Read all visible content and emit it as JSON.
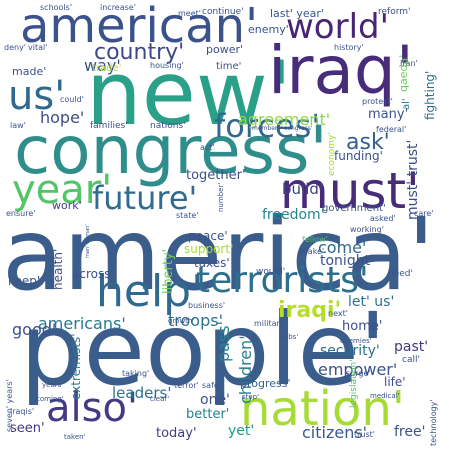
{
  "words": [
    {
      "text": "america'",
      "color": "#3b5d8c"
    },
    {
      "text": "people'",
      "color": "#3b5d8c"
    },
    {
      "text": "congress'",
      "color": "#2f8e8b"
    },
    {
      "text": "new'",
      "color": "#2aa089"
    },
    {
      "text": "iraq'",
      "color": "#472c7a"
    },
    {
      "text": "american'",
      "color": "#3b528b"
    },
    {
      "text": "must'",
      "color": "#472c7a"
    },
    {
      "text": "nation'",
      "color": "#a6db36"
    },
    {
      "text": "help'",
      "color": "#31688e"
    },
    {
      "text": "terrorists'",
      "color": "#2d708e"
    },
    {
      "text": "year'",
      "color": "#52c569"
    },
    {
      "text": "also'",
      "color": "#443983"
    },
    {
      "text": "forces'",
      "color": "#31688e"
    },
    {
      "text": "world'",
      "color": "#482475"
    },
    {
      "text": "future'",
      "color": "#2f6c8e"
    },
    {
      "text": "us'",
      "color": "#31688e"
    },
    {
      "text": "country'",
      "color": "#3e4989"
    },
    {
      "text": "ask'",
      "color": "#355f8d"
    },
    {
      "text": "iraqi'",
      "color": "#b5de2b"
    },
    {
      "text": "americans'",
      "color": "#2a788e"
    },
    {
      "text": "empower'",
      "color": "#3b528b"
    },
    {
      "text": "security'",
      "color": "#2e6e8e"
    },
    {
      "text": "citizens'",
      "color": "#38598c"
    },
    {
      "text": "leaders'",
      "color": "#2c728e"
    },
    {
      "text": "hope'",
      "color": "#3e4c8a"
    },
    {
      "text": "agreement'",
      "color": "#8fd744"
    },
    {
      "text": "way'",
      "color": "#3b528b"
    },
    {
      "text": "troops'",
      "color": "#2d718e"
    },
    {
      "text": "together'",
      "color": "#3b528b"
    },
    {
      "text": "come'",
      "color": "#31668e"
    },
    {
      "text": "freedom'",
      "color": "#25858e"
    },
    {
      "text": "build'",
      "color": "#424086"
    },
    {
      "text": "today'",
      "color": "#433e85"
    },
    {
      "text": "good'",
      "color": "#3b528b"
    },
    {
      "text": "children'",
      "color": "#287d8e"
    },
    {
      "text": "pass'",
      "color": "#25848e"
    },
    {
      "text": "better'",
      "color": "#26828e"
    },
    {
      "text": "one'",
      "color": "#3b528b"
    },
    {
      "text": "yet'",
      "color": "#1f9a8a"
    },
    {
      "text": "seen'",
      "color": "#443983"
    },
    {
      "text": "free'",
      "color": "#3b528b"
    },
    {
      "text": "home'",
      "color": "#3e4c8a"
    },
    {
      "text": "progress'",
      "color": "#34618d"
    },
    {
      "text": "life'",
      "color": "#3e4c8a"
    },
    {
      "text": "past'",
      "color": "#453781"
    },
    {
      "text": "let' us'",
      "color": "#2c728e"
    },
    {
      "text": "tonight'",
      "color": "#3b528b"
    },
    {
      "text": "peace'",
      "color": "#3b528b"
    },
    {
      "text": "support'",
      "color": "#a8db34"
    },
    {
      "text": "taxes'",
      "color": "#3b528b"
    },
    {
      "text": "liberty'",
      "color": "#6ece58"
    },
    {
      "text": "keep'",
      "color": "#3b528b"
    },
    {
      "text": "health'",
      "color": "#3b528b"
    },
    {
      "text": "across'",
      "color": "#3b528b"
    },
    {
      "text": "work'",
      "color": "#424086"
    },
    {
      "text": "government'",
      "color": "#3b528b"
    },
    {
      "text": "funding'",
      "color": "#3b528b"
    },
    {
      "text": "many'",
      "color": "#3b528b"
    },
    {
      "text": "must' trust'",
      "color": "#3e4c8a"
    },
    {
      "text": "fighting'",
      "color": "#2d708e"
    },
    {
      "text": "qaeda'",
      "color": "#6ece58"
    },
    {
      "text": "al'",
      "color": "#2a788e"
    },
    {
      "text": "enemy'",
      "color": "#3b528b"
    },
    {
      "text": "power'",
      "color": "#3b528b"
    },
    {
      "text": "last' year'",
      "color": "#3b528b"
    },
    {
      "text": "made'",
      "color": "#3b528b"
    },
    {
      "text": "trade'",
      "color": "#b5de2b"
    },
    {
      "text": "time'",
      "color": "#3b528b"
    },
    {
      "text": "families'",
      "color": "#3b528b"
    },
    {
      "text": "nations'",
      "color": "#3b528b"
    },
    {
      "text": "economy'",
      "color": "#a8db34"
    },
    {
      "text": "schools'",
      "color": "#3b528b"
    },
    {
      "text": "increase'",
      "color": "#3b528b"
    },
    {
      "text": "meet'",
      "color": "#3b528b"
    },
    {
      "text": "continue'",
      "color": "#3b528b"
    },
    {
      "text": "reform'",
      "color": "#3b528b"
    },
    {
      "text": "deny'",
      "color": "#3b528b"
    },
    {
      "text": "vital'",
      "color": "#3b528b"
    },
    {
      "text": "history'",
      "color": "#3b528b"
    },
    {
      "text": "housing'",
      "color": "#3b528b"
    },
    {
      "text": "could'",
      "color": "#3b528b"
    },
    {
      "text": "protect'",
      "color": "#3b528b"
    },
    {
      "text": "iran'",
      "color": "#3b528b"
    },
    {
      "text": "law'",
      "color": "#3b528b"
    },
    {
      "text": "federal'",
      "color": "#3b528b"
    },
    {
      "text": "members' congress'",
      "color": "#3b528b"
    },
    {
      "text": "act'",
      "color": "#3b528b"
    },
    {
      "text": "state'",
      "color": "#3b528b"
    },
    {
      "text": "number'",
      "color": "#3b528b"
    },
    {
      "text": "care'",
      "color": "#3b528b"
    },
    {
      "text": "asked'",
      "color": "#3b528b"
    },
    {
      "text": "working'",
      "color": "#3b528b"
    },
    {
      "text": "ensure'",
      "color": "#3b528b"
    },
    {
      "text": "fellow'",
      "color": "#52c569"
    },
    {
      "text": "make'",
      "color": "#3b528b"
    },
    {
      "text": "need'",
      "color": "#3b528b"
    },
    {
      "text": "would'",
      "color": "#3b528b"
    },
    {
      "text": "business'",
      "color": "#3b528b"
    },
    {
      "text": "growth'",
      "color": "#3b528b"
    },
    {
      "text": "next'",
      "color": "#3b528b"
    },
    {
      "text": "enemies'",
      "color": "#3b528b"
    },
    {
      "text": "military'",
      "color": "#3b528b"
    },
    {
      "text": "jobs'",
      "color": "#3b528b"
    },
    {
      "text": "call'",
      "color": "#3b528b"
    },
    {
      "text": "surge'",
      "color": "#3b528b"
    },
    {
      "text": "legislation'",
      "color": "#52c569"
    },
    {
      "text": "medical'",
      "color": "#3b528b"
    },
    {
      "text": "extremists'",
      "color": "#2a788e"
    },
    {
      "text": "taking'",
      "color": "#3b528b"
    },
    {
      "text": "seven' years'",
      "color": "#3b528b"
    },
    {
      "text": "years'",
      "color": "#3b528b"
    },
    {
      "text": "coming'",
      "color": "#3b528b"
    },
    {
      "text": "terror'",
      "color": "#3b528b"
    },
    {
      "text": "safe'",
      "color": "#3b528b"
    },
    {
      "text": "stop'",
      "color": "#3b528b"
    },
    {
      "text": "clear'",
      "color": "#3b528b"
    },
    {
      "text": "iraqis'",
      "color": "#3b528b"
    },
    {
      "text": "taken'",
      "color": "#3b528b"
    },
    {
      "text": "trust'",
      "color": "#3b528b"
    },
    {
      "text": "technology'",
      "color": "#3b528b"
    },
    {
      "text": "man' woman'",
      "color": "#3b528b"
    }
  ]
}
